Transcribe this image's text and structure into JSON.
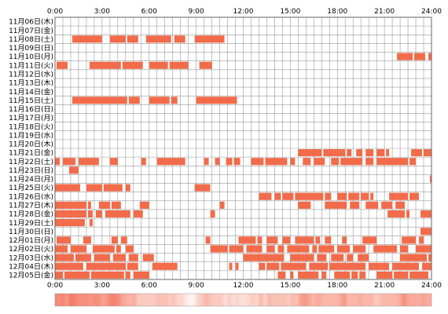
{
  "chart_data": {
    "type": "heatmap",
    "title": "",
    "xlabel": "",
    "ylabel": "",
    "x_ticks": [
      "0:00",
      "3:00",
      "6:00",
      "9:00",
      "12:00",
      "15:00",
      "18:00",
      "21:00",
      "24:00"
    ],
    "xlim": [
      0,
      24
    ],
    "bin_hours": 0.5,
    "grid": true,
    "colors": {
      "active": "#f26b4a",
      "grid": "#999999",
      "strip_light": "#fff3ef",
      "strip_dark": "#f47a64"
    },
    "rows": [
      {
        "label": "11月06日(木)",
        "intervals": []
      },
      {
        "label": "11月07日(金)",
        "intervals": []
      },
      {
        "label": "11月08日(土)",
        "intervals": [
          [
            1.1,
            3.0
          ],
          [
            3.5,
            4.5
          ],
          [
            4.6,
            5.3
          ],
          [
            5.8,
            7.4
          ],
          [
            7.6,
            8.3
          ],
          [
            8.9,
            10.8
          ]
        ]
      },
      {
        "label": "11月09日(日)",
        "intervals": []
      },
      {
        "label": "11月10日(月)",
        "intervals": [
          [
            21.8,
            22.8
          ],
          [
            22.9,
            23.6
          ],
          [
            23.8,
            24.0
          ]
        ]
      },
      {
        "label": "11月11日(火)",
        "intervals": [
          [
            0.1,
            0.8
          ],
          [
            2.2,
            4.2
          ],
          [
            4.3,
            5.6
          ],
          [
            6.0,
            7.2
          ],
          [
            7.3,
            8.5
          ],
          [
            9.2,
            10.0
          ]
        ]
      },
      {
        "label": "11月12日(水)",
        "intervals": []
      },
      {
        "label": "11月13日(木)",
        "intervals": []
      },
      {
        "label": "11月14日(金)",
        "intervals": []
      },
      {
        "label": "11月15日(土)",
        "intervals": [
          [
            1.1,
            4.6
          ],
          [
            4.7,
            5.4
          ],
          [
            6.0,
            7.3
          ],
          [
            7.4,
            7.8
          ],
          [
            9.0,
            11.6
          ]
        ]
      },
      {
        "label": "11月16日(日)",
        "intervals": []
      },
      {
        "label": "11月17日(月)",
        "intervals": []
      },
      {
        "label": "11月18日(火)",
        "intervals": []
      },
      {
        "label": "11月19日(水)",
        "intervals": []
      },
      {
        "label": "11月20日(木)",
        "intervals": []
      },
      {
        "label": "11月21日(金)",
        "intervals": [
          [
            15.5,
            17.0
          ],
          [
            17.1,
            18.5
          ],
          [
            18.6,
            18.9
          ],
          [
            19.2,
            19.6
          ],
          [
            19.8,
            20.3
          ],
          [
            20.5,
            21.0
          ],
          [
            21.1,
            21.3
          ],
          [
            22.7,
            23.4
          ],
          [
            23.5,
            24.0
          ]
        ]
      },
      {
        "label": "11月22日(土)",
        "intervals": [
          [
            0.0,
            0.3
          ],
          [
            0.5,
            1.3
          ],
          [
            1.5,
            2.8
          ],
          [
            3.5,
            4.0
          ],
          [
            5.5,
            5.8
          ],
          [
            6.5,
            8.3
          ],
          [
            9.5,
            9.8
          ],
          [
            10.2,
            10.5
          ],
          [
            10.9,
            11.3
          ],
          [
            11.4,
            11.8
          ],
          [
            12.5,
            13.3
          ],
          [
            13.4,
            14.8
          ],
          [
            15.0,
            15.3
          ],
          [
            15.8,
            16.3
          ],
          [
            16.5,
            17.2
          ],
          [
            17.6,
            18.1
          ],
          [
            18.2,
            19.6
          ],
          [
            19.8,
            20.3
          ],
          [
            20.5,
            22.5
          ],
          [
            22.6,
            23.0
          ]
        ]
      },
      {
        "label": "11月23日(日)",
        "intervals": [
          [
            0.9,
            1.5
          ]
        ]
      },
      {
        "label": "11月24日(月)",
        "intervals": [
          [
            23.9,
            24.0
          ]
        ]
      },
      {
        "label": "11月25日(火)",
        "intervals": [
          [
            0.0,
            1.6
          ],
          [
            2.0,
            3.0
          ],
          [
            3.1,
            4.3
          ],
          [
            4.5,
            4.8
          ],
          [
            8.9,
            9.9
          ]
        ]
      },
      {
        "label": "11月26日(水)",
        "intervals": [
          [
            13.0,
            13.8
          ],
          [
            14.0,
            14.4
          ],
          [
            14.5,
            15.2
          ],
          [
            15.3,
            17.1
          ],
          [
            17.2,
            17.6
          ],
          [
            18.0,
            18.6
          ],
          [
            18.7,
            19.4
          ],
          [
            19.5,
            20.0
          ],
          [
            20.1,
            20.3
          ],
          [
            21.3,
            22.5
          ],
          [
            22.6,
            23.2
          ]
        ]
      },
      {
        "label": "11月27日(木)",
        "intervals": [
          [
            0.0,
            2.0
          ],
          [
            2.1,
            2.3
          ],
          [
            2.8,
            3.5
          ],
          [
            3.6,
            4.2
          ],
          [
            5.4,
            6.0
          ],
          [
            10.5,
            10.8
          ],
          [
            15.5,
            16.3
          ],
          [
            17.2,
            18.6
          ],
          [
            18.8,
            19.4
          ],
          [
            19.8,
            20.6
          ],
          [
            20.8,
            21.5
          ],
          [
            21.7,
            22.3
          ]
        ]
      },
      {
        "label": "11月28日(金)",
        "intervals": [
          [
            0.0,
            2.0
          ],
          [
            2.1,
            2.4
          ],
          [
            2.6,
            3.0
          ],
          [
            3.2,
            4.8
          ],
          [
            5.0,
            5.6
          ],
          [
            9.9,
            10.2
          ],
          [
            21.2,
            22.3
          ],
          [
            22.4,
            22.6
          ],
          [
            23.3,
            24.0
          ]
        ]
      },
      {
        "label": "11月29日(土)",
        "intervals": [
          [
            0.0,
            1.9
          ],
          [
            2.2,
            2.4
          ]
        ]
      },
      {
        "label": "11月30日(日)",
        "intervals": [
          [
            23.3,
            24.0
          ]
        ]
      },
      {
        "label": "12月01日(月)",
        "intervals": [
          [
            0.1,
            1.0
          ],
          [
            1.8,
            2.3
          ],
          [
            3.6,
            4.0
          ],
          [
            4.2,
            4.6
          ],
          [
            9.6,
            9.9
          ],
          [
            11.7,
            12.8
          ],
          [
            12.9,
            13.2
          ],
          [
            13.5,
            14.2
          ],
          [
            14.5,
            15.0
          ],
          [
            15.3,
            16.5
          ],
          [
            16.6,
            16.9
          ],
          [
            17.2,
            17.6
          ],
          [
            18.3,
            18.6
          ],
          [
            19.6,
            20.5
          ],
          [
            22.1,
            23.0
          ],
          [
            23.2,
            23.5
          ]
        ]
      },
      {
        "label": "12月02日(火)",
        "intervals": [
          [
            0.0,
            0.8
          ],
          [
            1.0,
            2.0
          ],
          [
            2.4,
            3.8
          ],
          [
            3.9,
            4.2
          ],
          [
            4.5,
            5.0
          ],
          [
            9.9,
            11.0
          ],
          [
            11.1,
            12.0
          ],
          [
            12.2,
            13.2
          ],
          [
            13.5,
            14.0
          ],
          [
            14.2,
            14.6
          ],
          [
            14.8,
            16.2
          ],
          [
            16.4,
            16.7
          ],
          [
            16.8,
            17.8
          ],
          [
            18.0,
            18.8
          ],
          [
            19.0,
            19.8
          ],
          [
            20.3,
            21.8
          ],
          [
            22.0,
            22.5
          ],
          [
            23.0,
            24.0
          ]
        ]
      },
      {
        "label": "12月03日(水)",
        "intervals": [
          [
            0.0,
            1.2
          ],
          [
            1.3,
            2.3
          ],
          [
            2.5,
            3.5
          ],
          [
            3.7,
            4.5
          ],
          [
            4.7,
            5.3
          ],
          [
            5.6,
            6.3
          ],
          [
            12.0,
            14.6
          ],
          [
            15.0,
            16.5
          ],
          [
            16.7,
            17.3
          ],
          [
            17.6,
            18.4
          ],
          [
            18.6,
            19.0
          ],
          [
            19.3,
            20.0
          ],
          [
            22.0,
            23.7
          ],
          [
            23.8,
            24.0
          ]
        ]
      },
      {
        "label": "12月04日(木)",
        "intervals": [
          [
            0.0,
            1.8
          ],
          [
            2.0,
            4.5
          ],
          [
            4.6,
            5.3
          ],
          [
            6.2,
            7.8
          ],
          [
            11.1,
            11.3
          ],
          [
            11.5,
            11.7
          ],
          [
            13.0,
            13.4
          ],
          [
            13.5,
            14.3
          ],
          [
            14.4,
            16.0
          ],
          [
            16.2,
            17.4
          ],
          [
            17.5,
            19.8
          ],
          [
            20.0,
            21.3
          ],
          [
            21.5,
            23.2
          ],
          [
            23.4,
            24.0
          ]
        ]
      },
      {
        "label": "12月05日(金)",
        "intervals": [
          [
            0.0,
            0.5
          ],
          [
            0.6,
            2.2
          ],
          [
            2.3,
            4.4
          ],
          [
            4.5,
            4.8
          ],
          [
            5.0,
            6.0
          ],
          [
            14.2,
            14.7
          ],
          [
            15.0,
            15.2
          ],
          [
            15.5,
            16.8
          ],
          [
            17.0,
            17.3
          ],
          [
            17.8,
            18.8
          ],
          [
            18.9,
            19.3
          ],
          [
            19.4,
            19.8
          ],
          [
            20.5,
            21.5
          ],
          [
            21.6,
            22.5
          ],
          [
            22.6,
            23.8
          ]
        ]
      }
    ]
  }
}
